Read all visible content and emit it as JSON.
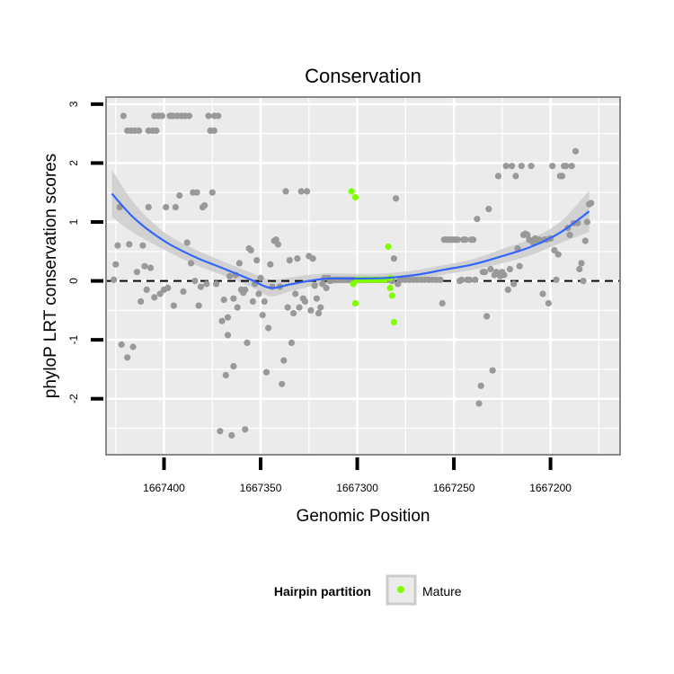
{
  "chart_data": {
    "type": "scatter",
    "title": "Conservation",
    "xlabel": "Genomic Position",
    "ylabel": "phyloP LRT conservation scores",
    "x_reversed": true,
    "xlim": [
      1667164,
      1667430
    ],
    "ylim": [
      -2.95,
      3.12
    ],
    "x_ticks": [
      1667400,
      1667350,
      1667300,
      1667250,
      1667200
    ],
    "x_tick_labels": [
      "1667400",
      "1667350",
      "1667300",
      "1667250",
      "1667200"
    ],
    "y_ticks": [
      -2,
      -1,
      0,
      1,
      2,
      3
    ],
    "y_tick_labels": [
      "-2",
      "-1",
      "0",
      "1",
      "2",
      "3"
    ],
    "grid": true,
    "reference_line": {
      "y": 0,
      "style": "dashed"
    },
    "legend": {
      "title": "Hairpin partition",
      "position": "bottom",
      "entries": [
        "Mature"
      ]
    },
    "colors": {
      "background": "#ebebeb",
      "grid": "#ffffff",
      "point": "#999999",
      "mature": "#7fff00",
      "smooth": "#3366ff",
      "band": "#cccccc",
      "axis_box": "#888888"
    },
    "series": [
      {
        "name": "",
        "points": [
          [
            1667426,
            0.02
          ],
          [
            1667425,
            0.28
          ],
          [
            1667424,
            0.6
          ],
          [
            1667423,
            1.25
          ],
          [
            1667422,
            -1.08
          ],
          [
            1667421,
            2.8
          ],
          [
            1667419,
            -1.3
          ],
          [
            1667419,
            2.55
          ],
          [
            1667418,
            0.62
          ],
          [
            1667417,
            2.55
          ],
          [
            1667416,
            -1.12
          ],
          [
            1667415,
            2.55
          ],
          [
            1667414,
            0.15
          ],
          [
            1667413,
            2.55
          ],
          [
            1667412,
            -0.35
          ],
          [
            1667411,
            0.6
          ],
          [
            1667410,
            0.25
          ],
          [
            1667409,
            -0.15
          ],
          [
            1667408,
            2.55
          ],
          [
            1667408,
            1.25
          ],
          [
            1667407,
            0.22
          ],
          [
            1667406,
            2.55
          ],
          [
            1667405,
            -0.28
          ],
          [
            1667405,
            2.8
          ],
          [
            1667404,
            2.55
          ],
          [
            1667403,
            2.8
          ],
          [
            1667402,
            -0.22
          ],
          [
            1667401,
            2.8
          ],
          [
            1667400,
            -0.15
          ],
          [
            1667399,
            1.25
          ],
          [
            1667398,
            -0.12
          ],
          [
            1667397,
            2.8
          ],
          [
            1667396,
            2.8
          ],
          [
            1667395,
            -0.42
          ],
          [
            1667395,
            2.8
          ],
          [
            1667394,
            1.25
          ],
          [
            1667393,
            2.8
          ],
          [
            1667392,
            1.45
          ],
          [
            1667391,
            2.8
          ],
          [
            1667390,
            -0.18
          ],
          [
            1667389,
            2.8
          ],
          [
            1667388,
            0.65
          ],
          [
            1667387,
            2.8
          ],
          [
            1667386,
            0.3
          ],
          [
            1667385,
            1.5
          ],
          [
            1667384,
            0.0
          ],
          [
            1667383,
            1.5
          ],
          [
            1667382,
            -0.42
          ],
          [
            1667381,
            -0.1
          ],
          [
            1667380,
            1.25
          ],
          [
            1667379,
            1.28
          ],
          [
            1667378,
            -0.05
          ],
          [
            1667377,
            2.8
          ],
          [
            1667376,
            2.55
          ],
          [
            1667375,
            1.5
          ],
          [
            1667374,
            2.8
          ],
          [
            1667374,
            2.55
          ],
          [
            1667373,
            -0.05
          ],
          [
            1667372,
            2.8
          ],
          [
            1667371,
            -2.55
          ],
          [
            1667370,
            -0.68
          ],
          [
            1667369,
            -0.32
          ],
          [
            1667368,
            -1.6
          ],
          [
            1667367,
            -0.92
          ],
          [
            1667367,
            -0.62
          ],
          [
            1667366,
            0.08
          ],
          [
            1667365,
            -2.62
          ],
          [
            1667364,
            -0.3
          ],
          [
            1667364,
            -1.45
          ],
          [
            1667363,
            0.1
          ],
          [
            1667362,
            -0.45
          ],
          [
            1667361,
            0.3
          ],
          [
            1667360,
            -0.15
          ],
          [
            1667359,
            -0.2
          ],
          [
            1667358,
            -2.52
          ],
          [
            1667358,
            -0.15
          ],
          [
            1667357,
            -1.05
          ],
          [
            1667356,
            0.55
          ],
          [
            1667355,
            0.52
          ],
          [
            1667354,
            -0.35
          ],
          [
            1667353,
            -0.05
          ],
          [
            1667352,
            0.35
          ],
          [
            1667351,
            -0.22
          ],
          [
            1667350,
            0.05
          ],
          [
            1667349,
            -0.58
          ],
          [
            1667348,
            -0.35
          ],
          [
            1667347,
            -1.55
          ],
          [
            1667346,
            -0.8
          ],
          [
            1667345,
            0.28
          ],
          [
            1667344,
            -0.1
          ],
          [
            1667343,
            0.68
          ],
          [
            1667342,
            0.7
          ],
          [
            1667341,
            0.62
          ],
          [
            1667340,
            -0.1
          ],
          [
            1667339,
            -1.75
          ],
          [
            1667338,
            -1.35
          ],
          [
            1667337,
            1.52
          ],
          [
            1667336,
            -0.45
          ],
          [
            1667335,
            0.35
          ],
          [
            1667334,
            -1.05
          ],
          [
            1667333,
            -0.55
          ],
          [
            1667332,
            -0.22
          ],
          [
            1667331,
            0.38
          ],
          [
            1667330,
            -0.45
          ],
          [
            1667329,
            1.52
          ],
          [
            1667328,
            -0.3
          ],
          [
            1667327,
            -0.35
          ],
          [
            1667326,
            1.52
          ],
          [
            1667325,
            0.42
          ],
          [
            1667324,
            -0.5
          ],
          [
            1667323,
            0.38
          ],
          [
            1667322,
            -0.08
          ],
          [
            1667321,
            -0.3
          ],
          [
            1667320,
            -0.55
          ],
          [
            1667319,
            -0.45
          ],
          [
            1667318,
            -0.05
          ],
          [
            1667317,
            0.05
          ],
          [
            1667316,
            -0.12
          ],
          [
            1667315,
            0.05
          ],
          [
            1667314,
            0.0
          ],
          [
            1667312,
            0.02
          ],
          [
            1667311,
            0.02
          ],
          [
            1667310,
            0.02
          ],
          [
            1667309,
            0.02
          ],
          [
            1667308,
            0.02
          ],
          [
            1667307,
            0.02
          ],
          [
            1667306,
            0.02
          ],
          [
            1667305,
            0.02
          ],
          [
            1667304,
            0.02
          ],
          [
            1667303,
            0.02
          ],
          [
            1667302,
            0.02
          ],
          [
            1667301,
            0.02
          ],
          [
            1667300,
            0.02
          ],
          [
            1667299,
            0.02
          ],
          [
            1667298,
            0.02
          ],
          [
            1667297,
            0.02
          ],
          [
            1667296,
            0.02
          ],
          [
            1667295,
            0.02
          ],
          [
            1667294,
            0.02
          ],
          [
            1667293,
            0.02
          ],
          [
            1667292,
            0.02
          ],
          [
            1667291,
            0.02
          ],
          [
            1667290,
            0.02
          ],
          [
            1667289,
            0.02
          ],
          [
            1667288,
            0.02
          ],
          [
            1667287,
            0.02
          ],
          [
            1667286,
            0.02
          ],
          [
            1667285,
            0.02
          ],
          [
            1667284,
            0.02
          ],
          [
            1667283,
            0.02
          ],
          [
            1667282,
            0.0
          ],
          [
            1667281,
            0.38
          ],
          [
            1667280,
            1.4
          ],
          [
            1667279,
            -0.05
          ],
          [
            1667278,
            0.02
          ],
          [
            1667277,
            0.02
          ],
          [
            1667275,
            0.02
          ],
          [
            1667273,
            0.02
          ],
          [
            1667271,
            0.02
          ],
          [
            1667269,
            0.02
          ],
          [
            1667267,
            0.02
          ],
          [
            1667265,
            0.02
          ],
          [
            1667263,
            0.02
          ],
          [
            1667261,
            0.02
          ],
          [
            1667259,
            0.02
          ],
          [
            1667257,
            0.02
          ],
          [
            1667256,
            -0.38
          ],
          [
            1667255,
            0.7
          ],
          [
            1667254,
            0.7
          ],
          [
            1667253,
            0.7
          ],
          [
            1667252,
            0.7
          ],
          [
            1667251,
            0.7
          ],
          [
            1667250,
            0.7
          ],
          [
            1667249,
            0.7
          ],
          [
            1667248,
            0.7
          ],
          [
            1667247,
            0.0
          ],
          [
            1667246,
            0.02
          ],
          [
            1667245,
            0.7
          ],
          [
            1667244,
            0.7
          ],
          [
            1667243,
            0.02
          ],
          [
            1667242,
            0.02
          ],
          [
            1667241,
            0.7
          ],
          [
            1667240,
            0.7
          ],
          [
            1667239,
            0.02
          ],
          [
            1667238,
            1.05
          ],
          [
            1667237,
            -2.08
          ],
          [
            1667236,
            -1.78
          ],
          [
            1667235,
            0.15
          ],
          [
            1667234,
            0.15
          ],
          [
            1667233,
            -0.6
          ],
          [
            1667232,
            1.22
          ],
          [
            1667231,
            0.2
          ],
          [
            1667230,
            -1.52
          ],
          [
            1667229,
            0.1
          ],
          [
            1667228,
            0.15
          ],
          [
            1667227,
            1.78
          ],
          [
            1667226,
            0.08
          ],
          [
            1667225,
            0.15
          ],
          [
            1667224,
            0.1
          ],
          [
            1667223,
            1.95
          ],
          [
            1667222,
            -0.15
          ],
          [
            1667221,
            0.2
          ],
          [
            1667220,
            1.95
          ],
          [
            1667219,
            -0.05
          ],
          [
            1667218,
            1.78
          ],
          [
            1667217,
            0.55
          ],
          [
            1667216,
            0.25
          ],
          [
            1667215,
            1.95
          ],
          [
            1667214,
            0.78
          ],
          [
            1667213,
            0.8
          ],
          [
            1667212,
            0.78
          ],
          [
            1667211,
            0.7
          ],
          [
            1667210,
            1.95
          ],
          [
            1667209,
            0.65
          ],
          [
            1667208,
            0.72
          ],
          [
            1667207,
            0.7
          ],
          [
            1667206,
            0.7
          ],
          [
            1667205,
            0.68
          ],
          [
            1667204,
            -0.22
          ],
          [
            1667203,
            0.7
          ],
          [
            1667202,
            0.7
          ],
          [
            1667201,
            -0.38
          ],
          [
            1667200,
            0.72
          ],
          [
            1667199,
            1.95
          ],
          [
            1667198,
            0.52
          ],
          [
            1667197,
            0.02
          ],
          [
            1667196,
            0.45
          ],
          [
            1667195,
            1.78
          ],
          [
            1667194,
            1.78
          ],
          [
            1667193,
            1.95
          ],
          [
            1667192,
            1.95
          ],
          [
            1667191,
            0.9
          ],
          [
            1667190,
            0.78
          ],
          [
            1667189,
            1.95
          ],
          [
            1667188,
            0.98
          ],
          [
            1667187,
            2.2
          ],
          [
            1667186,
            0.98
          ],
          [
            1667185,
            0.2
          ],
          [
            1667184,
            0.3
          ],
          [
            1667183,
            0.0
          ],
          [
            1667182,
            0.68
          ],
          [
            1667181,
            1.0
          ],
          [
            1667180,
            1.3
          ],
          [
            1667179,
            1.32
          ]
        ]
      },
      {
        "name": "Mature",
        "points": [
          [
            1667303,
            1.52
          ],
          [
            1667301,
            1.42
          ],
          [
            1667302,
            -0.05
          ],
          [
            1667301,
            -0.38
          ],
          [
            1667300,
            0.02
          ],
          [
            1667298,
            0.02
          ],
          [
            1667296,
            0.02
          ],
          [
            1667294,
            0.02
          ],
          [
            1667292,
            0.02
          ],
          [
            1667290,
            0.02
          ],
          [
            1667288,
            0.02
          ],
          [
            1667286,
            0.02
          ],
          [
            1667284,
            0.58
          ],
          [
            1667283,
            0.05
          ],
          [
            1667283,
            -0.12
          ],
          [
            1667282,
            -0.25
          ],
          [
            1667281,
            -0.7
          ]
        ]
      }
    ],
    "smooth": {
      "x": [
        1667427,
        1667415,
        1667400,
        1667385,
        1667370,
        1667355,
        1667345,
        1667335,
        1667325,
        1667315,
        1667300,
        1667285,
        1667270,
        1667255,
        1667240,
        1667225,
        1667210,
        1667195,
        1667180
      ],
      "y": [
        1.48,
        1.05,
        0.68,
        0.42,
        0.22,
        0.02,
        -0.12,
        -0.06,
        0.0,
        0.04,
        0.04,
        0.05,
        0.1,
        0.19,
        0.28,
        0.42,
        0.58,
        0.82,
        1.18
      ],
      "band_half_width": [
        0.4,
        0.25,
        0.15,
        0.13,
        0.12,
        0.12,
        0.14,
        0.12,
        0.1,
        0.09,
        0.08,
        0.08,
        0.08,
        0.08,
        0.09,
        0.12,
        0.14,
        0.18,
        0.35
      ]
    }
  }
}
